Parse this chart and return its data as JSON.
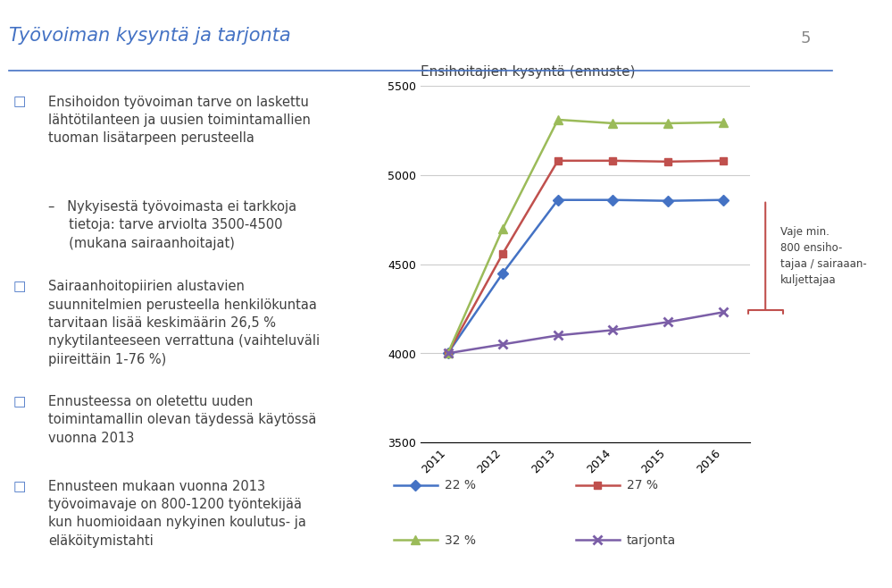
{
  "chart_title": "Ensihoitajien kysyntä (ennuste)",
  "page_title": "Työvoiman kysyntä ja tarjonta",
  "page_num": "5",
  "years": [
    2011,
    2012,
    2013,
    2014,
    2015,
    2016
  ],
  "series_order": [
    "22 %",
    "27 %",
    "32 %",
    "tarjonta"
  ],
  "series": {
    "22 %": {
      "values": [
        4000,
        4450,
        4860,
        4860,
        4855,
        4860
      ],
      "color": "#4472C4",
      "marker": "D",
      "markersize": 6
    },
    "27 %": {
      "values": [
        4000,
        4560,
        5080,
        5080,
        5075,
        5080
      ],
      "color": "#C0504D",
      "marker": "s",
      "markersize": 6
    },
    "32 %": {
      "values": [
        4000,
        4700,
        5310,
        5290,
        5290,
        5295
      ],
      "color": "#9BBB59",
      "marker": "^",
      "markersize": 7
    },
    "tarjonta": {
      "values": [
        4000,
        4050,
        4100,
        4130,
        4175,
        4230
      ],
      "color": "#7B5EA7",
      "marker": "x",
      "markersize": 7,
      "markeredgewidth": 2
    }
  },
  "ylim": [
    3500,
    5500
  ],
  "yticks": [
    3500,
    4000,
    4500,
    5000,
    5500
  ],
  "bg_color": "#FFFFFF",
  "title_color": "#4472C4",
  "text_color": "#404040",
  "bullet_color": "#4472C4",
  "brace_color": "#C0504D",
  "brace_label": "Vaje min.\n800 ensiho-\ntajaa / sairaaan-\nkuljettajaa",
  "separator_color": "#4472C4",
  "legend_row1": [
    "22 %",
    "27 %"
  ],
  "legend_row2": [
    "32 %",
    "tarjonta"
  ]
}
